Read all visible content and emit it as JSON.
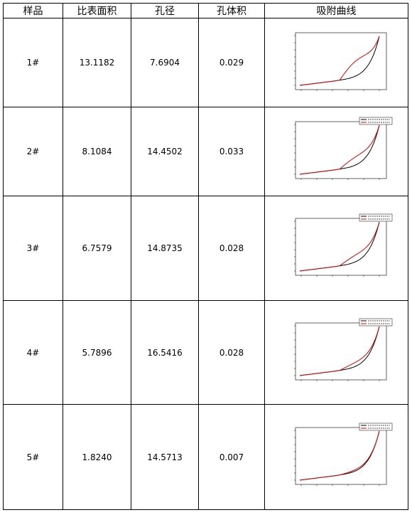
{
  "table": {
    "header": [
      "样品",
      "比表面积",
      "孔径",
      "孔体积",
      "吸附曲线"
    ],
    "rows": [
      [
        "1#",
        "13.1182",
        "7.6904",
        "0.029"
      ],
      [
        "2#",
        "8.1084",
        "14.4502",
        "0.033"
      ],
      [
        "3#",
        "6.7579",
        "14.8735",
        "0.028"
      ],
      [
        "4#",
        "5.7896",
        "16.5416",
        "0.028"
      ],
      [
        "5#",
        "1.8240",
        "14.5713",
        "0.007"
      ]
    ]
  }
}
